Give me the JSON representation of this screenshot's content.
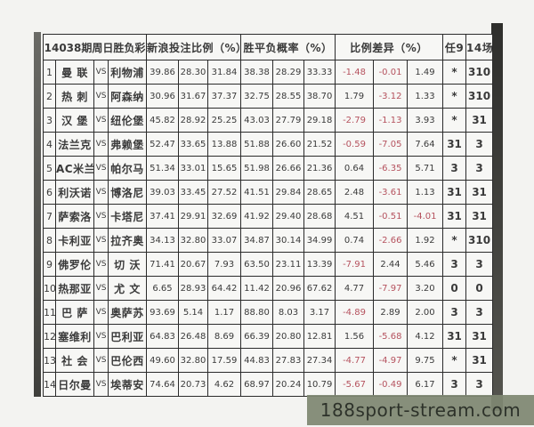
{
  "table": {
    "title": "14038期周日胜负彩",
    "columns": {
      "sina": "新浪投注比例（%）",
      "probability": "胜平负概率（%）",
      "diff": "比例差异（%）",
      "ren9": "任9",
      "c14": "14场"
    },
    "vs_label": "VS",
    "rows": [
      {
        "no": "1",
        "home": "曼 联",
        "away": "利物浦",
        "sina": [
          "39.86",
          "28.30",
          "31.84"
        ],
        "prob": [
          "38.38",
          "28.29",
          "33.33"
        ],
        "diff": [
          "-1.48",
          "-0.01",
          "1.49"
        ],
        "ren9": "*",
        "c14": "310"
      },
      {
        "no": "2",
        "home": "热 刺",
        "away": "阿森纳",
        "sina": [
          "30.96",
          "31.67",
          "37.37"
        ],
        "prob": [
          "32.75",
          "28.55",
          "38.70"
        ],
        "diff": [
          "1.79",
          "-3.12",
          "1.33"
        ],
        "ren9": "*",
        "c14": "310"
      },
      {
        "no": "3",
        "home": "汉 堡",
        "away": "纽伦堡",
        "sina": [
          "45.82",
          "28.92",
          "25.25"
        ],
        "prob": [
          "43.03",
          "27.79",
          "29.18"
        ],
        "diff": [
          "-2.79",
          "-1.13",
          "3.93"
        ],
        "ren9": "*",
        "c14": "31"
      },
      {
        "no": "4",
        "home": "法兰克",
        "away": "弗赖堡",
        "sina": [
          "52.47",
          "33.65",
          "13.88"
        ],
        "prob": [
          "51.88",
          "26.60",
          "21.52"
        ],
        "diff": [
          "-0.59",
          "-7.05",
          "7.64"
        ],
        "ren9": "31",
        "c14": "3"
      },
      {
        "no": "5",
        "home": "AC米兰",
        "away": "帕尔马",
        "sina": [
          "51.34",
          "33.01",
          "15.65"
        ],
        "prob": [
          "51.98",
          "26.66",
          "21.36"
        ],
        "diff": [
          "0.64",
          "-6.35",
          "5.71"
        ],
        "ren9": "3",
        "c14": "3"
      },
      {
        "no": "6",
        "home": "利沃诺",
        "away": "博洛尼",
        "sina": [
          "39.03",
          "33.45",
          "27.52"
        ],
        "prob": [
          "41.51",
          "29.84",
          "28.65"
        ],
        "diff": [
          "2.48",
          "-3.61",
          "1.13"
        ],
        "ren9": "31",
        "c14": "31"
      },
      {
        "no": "7",
        "home": "萨索洛",
        "away": "卡塔尼",
        "sina": [
          "37.41",
          "29.91",
          "32.69"
        ],
        "prob": [
          "41.92",
          "29.40",
          "28.68"
        ],
        "diff": [
          "4.51",
          "-0.51",
          "-4.01"
        ],
        "ren9": "31",
        "c14": "31"
      },
      {
        "no": "8",
        "home": "卡利亚",
        "away": "拉齐奥",
        "sina": [
          "34.13",
          "32.80",
          "33.07"
        ],
        "prob": [
          "34.87",
          "30.14",
          "34.99"
        ],
        "diff": [
          "0.74",
          "-2.66",
          "1.92"
        ],
        "ren9": "*",
        "c14": "310"
      },
      {
        "no": "9",
        "home": "佛罗伦",
        "away": "切 沃",
        "sina": [
          "71.41",
          "20.67",
          "7.93"
        ],
        "prob": [
          "63.50",
          "23.11",
          "13.39"
        ],
        "diff": [
          "-7.91",
          "2.44",
          "5.46"
        ],
        "ren9": "3",
        "c14": "3"
      },
      {
        "no": "10",
        "home": "热那亚",
        "away": "尤 文",
        "sina": [
          "6.65",
          "28.93",
          "64.42"
        ],
        "prob": [
          "11.42",
          "20.96",
          "67.62"
        ],
        "diff": [
          "4.77",
          "-7.97",
          "3.20"
        ],
        "ren9": "0",
        "c14": "0"
      },
      {
        "no": "11",
        "home": "巴 萨",
        "away": "奥萨苏",
        "sina": [
          "93.69",
          "5.14",
          "1.17"
        ],
        "prob": [
          "88.80",
          "8.03",
          "3.17"
        ],
        "diff": [
          "-4.89",
          "2.89",
          "2.00"
        ],
        "ren9": "3",
        "c14": "3"
      },
      {
        "no": "12",
        "home": "塞维利",
        "away": "巴利亚",
        "sina": [
          "64.83",
          "26.48",
          "8.69"
        ],
        "prob": [
          "66.39",
          "20.80",
          "12.81"
        ],
        "diff": [
          "1.56",
          "-5.68",
          "4.12"
        ],
        "ren9": "31",
        "c14": "31"
      },
      {
        "no": "13",
        "home": "社 会",
        "away": "巴伦西",
        "sina": [
          "49.60",
          "32.80",
          "17.59"
        ],
        "prob": [
          "44.83",
          "27.83",
          "27.34"
        ],
        "diff": [
          "-4.77",
          "-4.97",
          "9.75"
        ],
        "ren9": "*",
        "c14": "31"
      },
      {
        "no": "14",
        "home": "日尔曼",
        "away": "埃蒂安",
        "sina": [
          "74.64",
          "20.73",
          "4.62"
        ],
        "prob": [
          "68.97",
          "20.24",
          "10.79"
        ],
        "diff": [
          "-5.67",
          "-0.49",
          "6.17"
        ],
        "ren9": "3",
        "c14": "3"
      }
    ]
  },
  "watermark": {
    "text": "188sport-stream.com"
  },
  "colors": {
    "negative_value": "#b5525e",
    "table_border": "#2b2b2b",
    "watermark_bar": "#7e8772"
  }
}
